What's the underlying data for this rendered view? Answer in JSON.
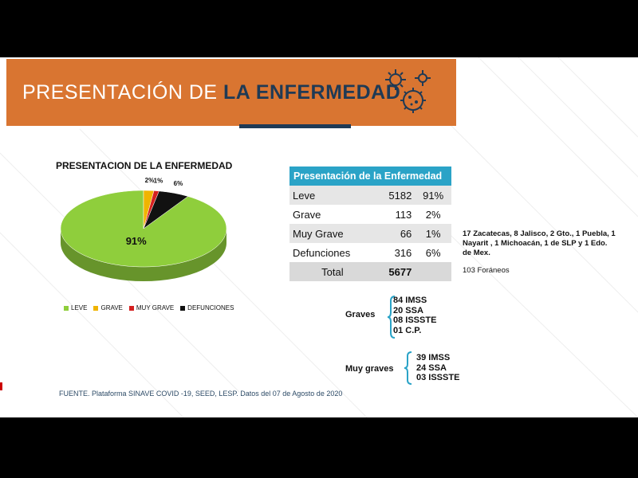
{
  "banner": {
    "title_light": "PRESENTACIÓN DE",
    "title_bold": "LA ENFERMEDAD",
    "bg_color": "#d97531",
    "accent_color": "#1f3a55"
  },
  "chart_title": "PRESENTACION DE LA ENFERMEDAD",
  "chart_data": {
    "type": "pie",
    "title": "PRESENTACION DE LA ENFERMEDAD",
    "categories": [
      "LEVE",
      "GRAVE",
      "MUY GRAVE",
      "DEFUNCIONES"
    ],
    "values": [
      91,
      2,
      1,
      6
    ],
    "labels": [
      "91%",
      "2%",
      "1%",
      "6%"
    ],
    "colors": [
      "#8fce3c",
      "#f0b400",
      "#d42020",
      "#111111"
    ],
    "legend_position": "bottom"
  },
  "table": {
    "header": "Presentación de la Enfermedad",
    "rows": [
      {
        "label": "Leve",
        "count": "5182",
        "pct": "91%"
      },
      {
        "label": "Grave",
        "count": "113",
        "pct": "2%"
      },
      {
        "label": "Muy Grave",
        "count": "66",
        "pct": "1%"
      },
      {
        "label": "Defunciones",
        "count": "316",
        "pct": "6%"
      }
    ],
    "total_label": "Total",
    "total_value": "5677"
  },
  "note": "17 Zacatecas, 8 Jalisco, 2 Gto., 1 Puebla, 1 Nayarit , 1 Michoacán, 1 de SLP y 1 Edo. de Mex.",
  "foraneos": "103 Foráneos",
  "graves": {
    "label": "Graves",
    "items": [
      "84 IMSS",
      "20 SSA",
      "08 ISSSTE",
      "01 C.P."
    ]
  },
  "muy_graves": {
    "label": "Muy graves",
    "items": [
      "39 IMSS",
      "24 SSA",
      "03 ISSSTE"
    ]
  },
  "fuente": "FUENTE. Plataforma SINAVE COVID -19, SEED, LESP. Datos del 07 de Agosto de 2020"
}
